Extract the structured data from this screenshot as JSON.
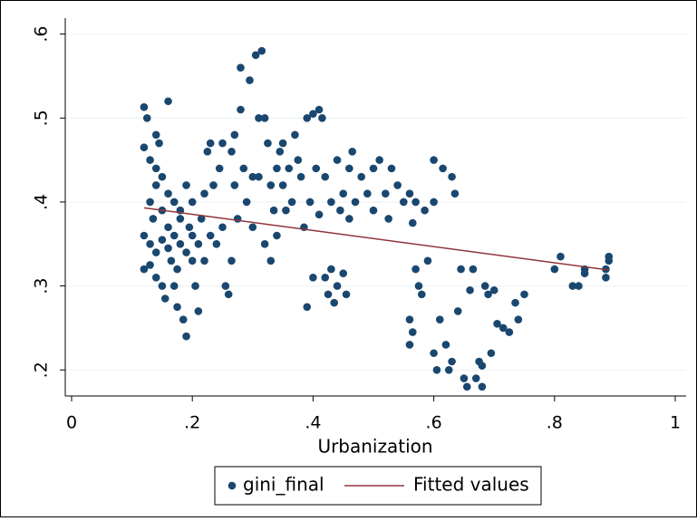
{
  "chart_data": {
    "type": "scatter",
    "xlabel": "Urbanization",
    "xlim": [
      -0.0105,
      1.018
    ],
    "ylim": [
      0.169,
      0.619
    ],
    "xticks": [
      0,
      {
        "value": 0.2,
        "label": ".2"
      },
      {
        "value": 0.4,
        "label": ".4"
      },
      {
        "value": 0.6,
        "label": ".6"
      },
      {
        "value": 0.8,
        "label": ".8"
      },
      1
    ],
    "yticks": [
      {
        "value": 0.2,
        "label": ".2"
      },
      {
        "value": 0.3,
        "label": ".3"
      },
      {
        "value": 0.4,
        "label": ".4"
      },
      {
        "value": 0.5,
        "label": ".5"
      },
      {
        "value": 0.6,
        "label": ".6"
      }
    ],
    "grid": true,
    "legend": "bottom",
    "series": [
      {
        "name": "gini_final",
        "type": "scatter",
        "color": "#1a476f",
        "x": [
          0.12,
          0.12,
          0.12,
          0.12,
          0.125,
          0.13,
          0.13,
          0.13,
          0.13,
          0.135,
          0.14,
          0.14,
          0.14,
          0.14,
          0.14,
          0.145,
          0.15,
          0.15,
          0.15,
          0.15,
          0.155,
          0.16,
          0.16,
          0.16,
          0.16,
          0.165,
          0.17,
          0.17,
          0.17,
          0.175,
          0.175,
          0.18,
          0.18,
          0.18,
          0.185,
          0.19,
          0.19,
          0.19,
          0.195,
          0.2,
          0.2,
          0.2,
          0.205,
          0.21,
          0.21,
          0.215,
          0.22,
          0.22,
          0.225,
          0.23,
          0.23,
          0.235,
          0.24,
          0.245,
          0.25,
          0.25,
          0.255,
          0.26,
          0.265,
          0.265,
          0.27,
          0.27,
          0.275,
          0.28,
          0.28,
          0.285,
          0.29,
          0.295,
          0.3,
          0.3,
          0.305,
          0.31,
          0.31,
          0.315,
          0.32,
          0.32,
          0.325,
          0.33,
          0.33,
          0.335,
          0.34,
          0.34,
          0.345,
          0.35,
          0.35,
          0.355,
          0.36,
          0.365,
          0.37,
          0.375,
          0.38,
          0.385,
          0.39,
          0.39,
          0.395,
          0.4,
          0.4,
          0.405,
          0.41,
          0.41,
          0.415,
          0.42,
          0.42,
          0.425,
          0.43,
          0.43,
          0.435,
          0.44,
          0.44,
          0.445,
          0.45,
          0.45,
          0.455,
          0.46,
          0.46,
          0.465,
          0.47,
          0.48,
          0.49,
          0.5,
          0.5,
          0.51,
          0.52,
          0.525,
          0.53,
          0.54,
          0.55,
          0.56,
          0.565,
          0.57,
          0.575,
          0.56,
          0.56,
          0.565,
          0.57,
          0.58,
          0.585,
          0.59,
          0.6,
          0.6,
          0.6,
          0.605,
          0.61,
          0.615,
          0.62,
          0.625,
          0.63,
          0.63,
          0.635,
          0.64,
          0.645,
          0.65,
          0.655,
          0.66,
          0.665,
          0.67,
          0.675,
          0.68,
          0.68,
          0.685,
          0.69,
          0.695,
          0.7,
          0.705,
          0.715,
          0.725,
          0.735,
          0.74,
          0.75,
          0.8,
          0.81,
          0.83,
          0.84,
          0.85,
          0.85,
          0.885,
          0.89,
          0.89,
          0.885
        ],
        "values": [
          0.513,
          0.465,
          0.36,
          0.32,
          0.5,
          0.45,
          0.4,
          0.35,
          0.325,
          0.38,
          0.48,
          0.44,
          0.42,
          0.34,
          0.31,
          0.47,
          0.43,
          0.39,
          0.355,
          0.3,
          0.285,
          0.52,
          0.41,
          0.37,
          0.345,
          0.33,
          0.3,
          0.4,
          0.36,
          0.32,
          0.275,
          0.39,
          0.35,
          0.38,
          0.26,
          0.24,
          0.34,
          0.42,
          0.37,
          0.33,
          0.36,
          0.4,
          0.3,
          0.35,
          0.27,
          0.38,
          0.41,
          0.33,
          0.46,
          0.36,
          0.47,
          0.42,
          0.35,
          0.44,
          0.47,
          0.37,
          0.3,
          0.29,
          0.46,
          0.33,
          0.48,
          0.42,
          0.38,
          0.56,
          0.51,
          0.44,
          0.4,
          0.545,
          0.43,
          0.37,
          0.575,
          0.5,
          0.43,
          0.58,
          0.35,
          0.5,
          0.47,
          0.42,
          0.33,
          0.39,
          0.44,
          0.36,
          0.46,
          0.47,
          0.42,
          0.39,
          0.44,
          0.4,
          0.48,
          0.45,
          0.43,
          0.37,
          0.5,
          0.275,
          0.4,
          0.31,
          0.505,
          0.44,
          0.51,
          0.385,
          0.5,
          0.43,
          0.31,
          0.29,
          0.32,
          0.4,
          0.28,
          0.45,
          0.3,
          0.39,
          0.41,
          0.315,
          0.29,
          0.44,
          0.38,
          0.46,
          0.4,
          0.43,
          0.41,
          0.44,
          0.39,
          0.45,
          0.41,
          0.38,
          0.44,
          0.42,
          0.4,
          0.41,
          0.375,
          0.4,
          0.3,
          0.26,
          0.23,
          0.245,
          0.32,
          0.29,
          0.39,
          0.33,
          0.4,
          0.45,
          0.22,
          0.2,
          0.26,
          0.44,
          0.23,
          0.2,
          0.43,
          0.21,
          0.41,
          0.27,
          0.32,
          0.19,
          0.18,
          0.295,
          0.32,
          0.19,
          0.21,
          0.205,
          0.18,
          0.3,
          0.29,
          0.22,
          0.295,
          0.255,
          0.25,
          0.245,
          0.28,
          0.26,
          0.29,
          0.32,
          0.335,
          0.3,
          0.3,
          0.315,
          0.32,
          0.31,
          0.33,
          0.335,
          0.32
        ]
      },
      {
        "name": "Fitted values",
        "type": "line",
        "color": "#90353b",
        "x": [
          0.12,
          0.89
        ],
        "values": [
          0.393,
          0.319
        ]
      }
    ]
  }
}
